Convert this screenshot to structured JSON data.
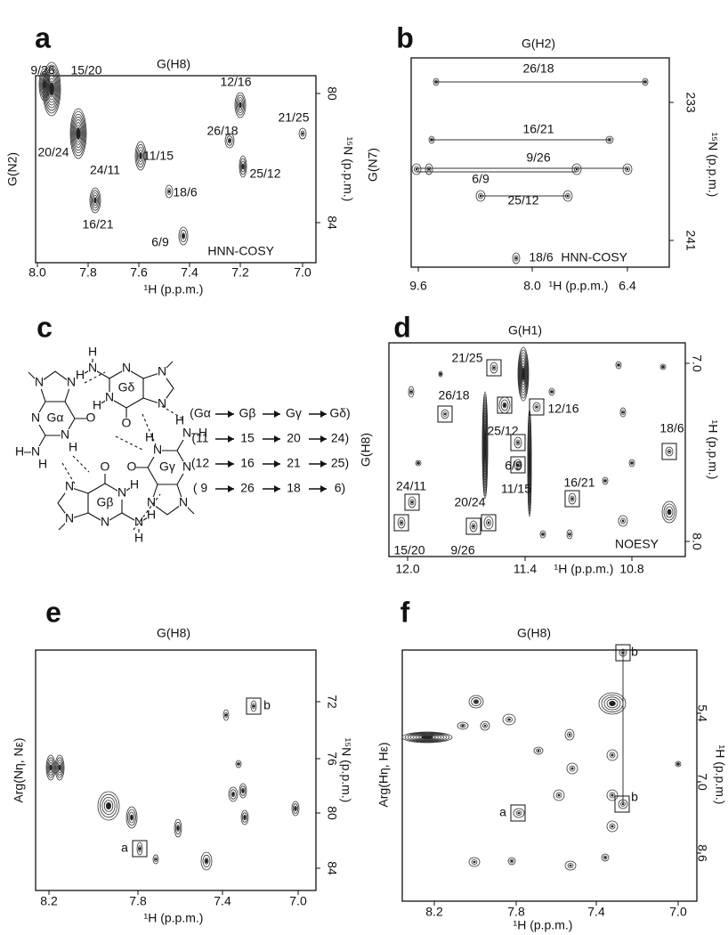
{
  "panels": {
    "a": {
      "letter": "a",
      "title": "G(H8)",
      "y_label": "G(N2)",
      "y2_label": "¹⁵N (p.p.m.)",
      "x_label": "¹H (p.p.m.)",
      "x_ticks": [
        "8.0",
        "7.8",
        "7.6",
        "7.4",
        "7.2",
        "7.0"
      ],
      "y2_ticks": [
        "80",
        "84"
      ],
      "experiment": "HNN-COSY",
      "peak_labels": [
        "9/26",
        "15/20",
        "12/16",
        "21/25",
        "26/18",
        "11/15",
        "20/24",
        "24/11",
        "25/12",
        "18/6",
        "16/21",
        "6/9"
      ]
    },
    "b": {
      "letter": "b",
      "title": "G(H2)",
      "y_label": "G(N7)",
      "y2_label": "¹⁵N (p.p.m.)",
      "x_label": "¹H (p.p.m.)",
      "x_ticks": [
        "9.6",
        "8.0",
        "6.4"
      ],
      "y2_ticks": [
        "233",
        "241"
      ],
      "experiment": "HNN-COSY",
      "peak_labels": [
        "26/18",
        "16/21",
        "9/26",
        "6/9",
        "25/12",
        "18/6"
      ]
    },
    "c": {
      "letter": "c",
      "guanines": [
        {
          "name": "Gα",
          "atoms": [
            "N",
            "N",
            "O",
            "N",
            "H",
            "N",
            "N",
            "H",
            "H"
          ]
        },
        {
          "name": "Gδ",
          "atoms": [
            "N",
            "N",
            "O",
            "N",
            "H",
            "N",
            "N",
            "H",
            "H"
          ]
        },
        {
          "name": "Gβ",
          "atoms": [
            "N",
            "N",
            "O",
            "N",
            "H",
            "N",
            "N",
            "H",
            "H"
          ]
        },
        {
          "name": "Gγ",
          "atoms": [
            "N",
            "N",
            "O",
            "N",
            "H",
            "N",
            "N",
            "H",
            "H"
          ]
        }
      ],
      "pathway": [
        [
          "(Gα",
          "Gβ",
          "Gγ",
          "Gδ)"
        ],
        [
          "(11",
          "15",
          "20",
          "24)"
        ],
        [
          "(12",
          "16",
          "21",
          "25)"
        ],
        [
          "( 9",
          "26",
          "18",
          "6)"
        ]
      ]
    },
    "d": {
      "letter": "d",
      "title": "G(H1)",
      "y_label": "G(H8)",
      "y2_label": "¹H (p.p.m.)",
      "x_label": "¹H (p.p.m.)",
      "x_ticks": [
        "12.0",
        "11.4",
        "10.8"
      ],
      "y2_ticks": [
        "7.0",
        "8.0"
      ],
      "experiment": "NOESY",
      "peak_labels": [
        "21/25",
        "26/18",
        "25/12",
        "12/16",
        "6/9",
        "11/15",
        "18/6",
        "16/21",
        "24/11",
        "20/24",
        "15/20",
        "9/26"
      ]
    },
    "e": {
      "letter": "e",
      "title": "G(H8)",
      "y_label": "Arg(Nη, Nε)",
      "y2_label": "¹⁵N (p.p.m.)",
      "x_label": "¹H (p.p.m.)",
      "x_ticks": [
        "8.2",
        "7.8",
        "7.4",
        "7.0"
      ],
      "y2_ticks": [
        "72",
        "76",
        "80",
        "84"
      ],
      "peak_labels": [
        "a",
        "b"
      ]
    },
    "f": {
      "letter": "f",
      "title": "G(H8)",
      "y_label": "Arg(Hη, Hε)",
      "y2_label": "¹H (p.p.m.)",
      "x_label": "¹H (p.p.m.)",
      "x_ticks": [
        "8.2",
        "7.8",
        "7.4",
        "7.0"
      ],
      "y2_ticks": [
        "5.4",
        "7.0",
        "8.6"
      ],
      "peak_labels": [
        "a",
        "b",
        "b"
      ]
    }
  }
}
